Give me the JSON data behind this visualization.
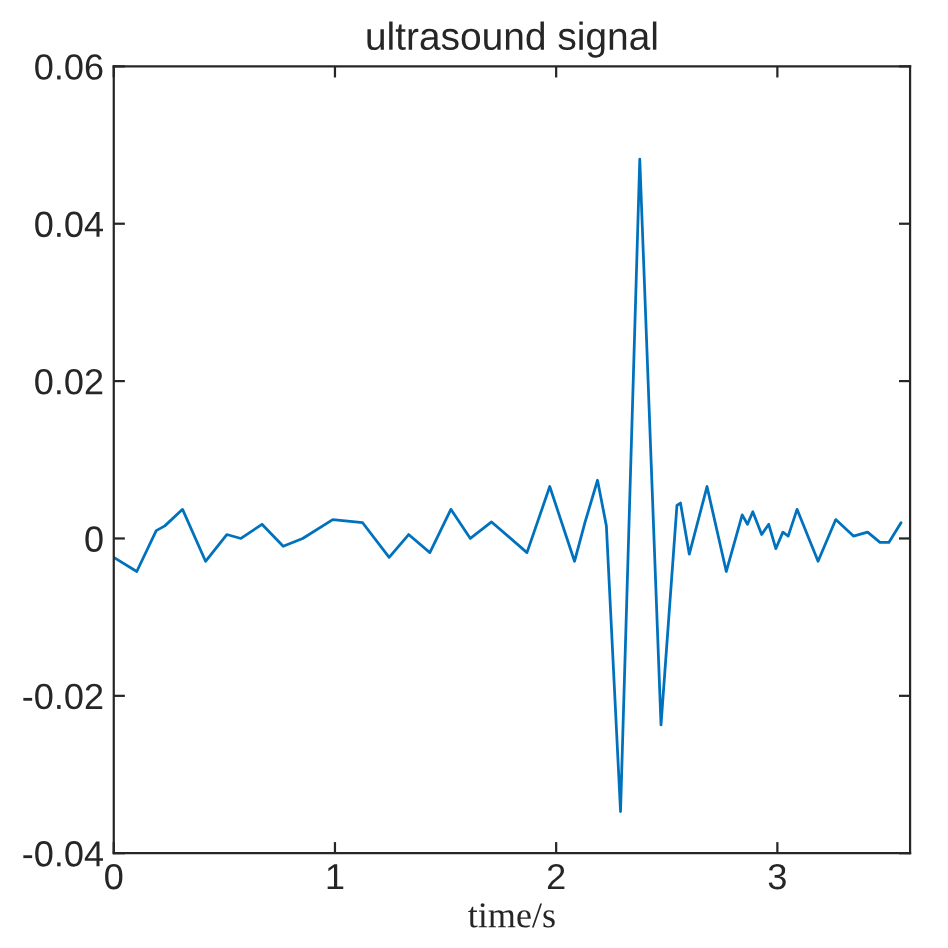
{
  "chart_data": {
    "type": "line",
    "title": "ultrasound signal",
    "xlabel": "time/s",
    "x": [
      0,
      0.104,
      0.192,
      0.231,
      0.311,
      0.415,
      0.511,
      0.575,
      0.67,
      0.766,
      0.854,
      0.99,
      1.125,
      1.245,
      1.333,
      1.429,
      1.524,
      1.612,
      1.708,
      1.868,
      1.971,
      2.083,
      2.131,
      2.187,
      2.227,
      2.291,
      2.378,
      2.474,
      2.546,
      2.562,
      2.602,
      2.682,
      2.769,
      2.841,
      2.865,
      2.889,
      2.929,
      2.961,
      2.993,
      3.025,
      3.049,
      3.089,
      3.184,
      3.264,
      3.344,
      3.408,
      3.464,
      3.504,
      3.559
    ],
    "series": [
      {
        "color": "#0072bd",
        "values": [
          -0.0024,
          -0.0042,
          0.001,
          0.0016,
          0.0037,
          -0.0029,
          0.0005,
          0,
          0.0018,
          -0.001,
          0,
          0.0024,
          0.002,
          -0.0024,
          0.0005,
          -0.0018,
          0.0037,
          0,
          0.0021,
          -0.0018,
          0.0066,
          -0.0029,
          0.0021,
          0.0074,
          0.0016,
          -0.0347,
          0.0482,
          -0.0237,
          0.0042,
          0.0045,
          -0.002,
          0.0066,
          -0.0042,
          0.003,
          0.0018,
          0.0034,
          0.0005,
          0.0018,
          -0.0013,
          0.0008,
          0.0003,
          0.0037,
          -0.0029,
          0.0024,
          0.0003,
          0.0008,
          -0.0005,
          -0.0005,
          0.002
        ]
      }
    ],
    "xlim": [
      0,
      3.6
    ],
    "xticks": [
      0,
      1,
      2,
      3
    ],
    "ylim": [
      -0.04,
      0.06
    ],
    "yticks": [
      -0.04,
      -0.02,
      0,
      0.02,
      0.04,
      0.06
    ],
    "grid": false,
    "legend": false,
    "marker": "none",
    "line_style": "solid"
  }
}
